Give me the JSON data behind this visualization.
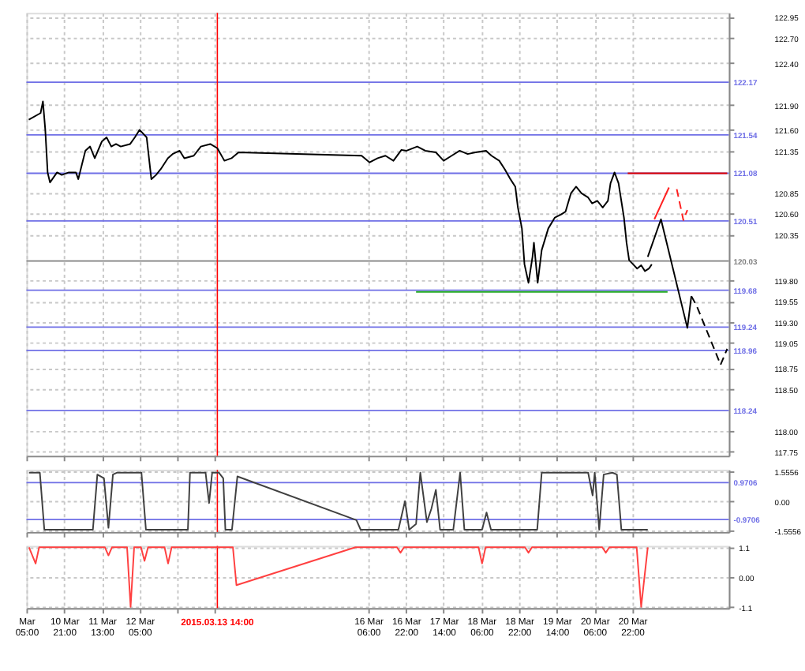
{
  "chart_data": [
    {
      "type": "line",
      "xlim": [
        "2015-03-10T05:00",
        "2015-03-22T15:00"
      ],
      "ylim": [
        117.7,
        123.0
      ],
      "grid": true,
      "legend": false,
      "tick_labels": "y",
      "xticks": [
        {
          "value": "2015-03-10T05:00",
          "label": null
        },
        {
          "value": "2015-03-10T21:00",
          "label": null
        },
        {
          "value": "2015-03-11T13:00",
          "label": null
        },
        {
          "value": "2015-03-12T05:00",
          "label": null
        },
        {
          "value": "2015-03-12T21:00",
          "label": null
        },
        {
          "value": "2015-03-13T13:00",
          "label": null
        },
        {
          "value": "2015-03-16T06:00",
          "label": null
        },
        {
          "value": "2015-03-16T22:00",
          "label": null
        },
        {
          "value": "2015-03-17T14:00",
          "label": null
        },
        {
          "value": "2015-03-18T06:00",
          "label": null
        },
        {
          "value": "2015-03-18T22:00",
          "label": null
        },
        {
          "value": "2015-03-19T14:00",
          "label": null
        },
        {
          "value": "2015-03-20T06:00",
          "label": null
        },
        {
          "value": "2015-03-20T22:00",
          "label": null
        }
      ],
      "yticks": [
        117.75,
        {
          "value": 118,
          "label": "118.00"
        },
        {
          "value": 118.5,
          "label": "118.50"
        },
        118.75,
        119.05,
        {
          "value": 119.3,
          "label": "119.30"
        },
        119.55,
        {
          "value": 119.8,
          "label": "119.80"
        },
        120.35,
        {
          "value": 120.6,
          "label": "120.60"
        },
        120.85,
        121.35,
        {
          "value": 121.6,
          "label": "121.60"
        },
        {
          "value": 121.9,
          "label": "121.90"
        },
        {
          "value": 122.4,
          "label": "122.40"
        },
        {
          "value": 122.7,
          "label": "122.70"
        },
        122.95
      ],
      "series": [
        {
          "color": "#000000",
          "line_style": "solid",
          "x": [
            "2015-03-10T06:00",
            "2015-03-10T11:00",
            "2015-03-10T12:00",
            "2015-03-10T13:00",
            "2015-03-10T14:00",
            "2015-03-10T15:00",
            "2015-03-10T16:00",
            "2015-03-10T18:00",
            "2015-03-10T20:00",
            "2015-03-10T23:00",
            "2015-03-11T02:00",
            "2015-03-11T03:00",
            "2015-03-11T06:00",
            "2015-03-11T08:00",
            "2015-03-11T10:00",
            "2015-03-11T13:00",
            "2015-03-11T15:00",
            "2015-03-11T17:00",
            "2015-03-11T19:00",
            "2015-03-11T21:00",
            "2015-03-12T01:00",
            "2015-03-12T03:00",
            "2015-03-12T05:00",
            "2015-03-12T08:00",
            "2015-03-12T09:00",
            "2015-03-12T10:00",
            "2015-03-12T12:00",
            "2015-03-12T14:00",
            "2015-03-12T17:00",
            "2015-03-12T19:00",
            "2015-03-12T22:00",
            "2015-03-13T00:00",
            "2015-03-13T04:00",
            "2015-03-13T07:00",
            "2015-03-13T11:00",
            "2015-03-13T14:00",
            "2015-03-13T17:00",
            "2015-03-13T20:00",
            "2015-03-13T23:00",
            "2015-03-16T03:12",
            "2015-03-16T06:36",
            "2015-03-16T10:00",
            "2015-03-16T13:18",
            "2015-03-16T16:42",
            "2015-03-16T20:06",
            "2015-03-16T22:18",
            "2015-03-17T02:48",
            "2015-03-17T06:12",
            "2015-03-17T10:42",
            "2015-03-17T14:00",
            "2015-03-17T17:24",
            "2015-03-17T20:48",
            "2015-03-18T00:12",
            "2015-03-18T03:30",
            "2015-03-18T08:00",
            "2015-03-18T10:18",
            "2015-03-18T13:36",
            "2015-03-18T15:54",
            "2015-03-18T18:06",
            "2015-03-18T20:24",
            "2015-03-18T21:30",
            "2015-03-18T23:12",
            "2015-03-19T00:18",
            "2015-03-19T02:00",
            "2015-03-19T03:42",
            "2015-03-19T04:18",
            "2015-03-19T05:54",
            "2015-03-19T07:36",
            "2015-03-19T10:24",
            "2015-03-19T13:12",
            "2015-03-19T16:00",
            "2015-03-19T17:42",
            "2015-03-19T20:00",
            "2015-03-19T22:12",
            "2015-03-20T00:30",
            "2015-03-20T03:18",
            "2015-03-20T05:00",
            "2015-03-20T07:12",
            "2015-03-20T09:30",
            "2015-03-20T11:42",
            "2015-03-20T12:48",
            "2015-03-20T14:30",
            "2015-03-20T16:12",
            "2015-03-20T18:30",
            "2015-03-20T19:36",
            "2015-03-20T20:42",
            "2015-03-20T22:24",
            "2015-03-21T00:06",
            "2015-03-21T01:48",
            "2015-03-21T03:24",
            "2015-03-21T05:06",
            "2015-03-21T06:18"
          ],
          "values": [
            121.72,
            121.8,
            121.94,
            121.6,
            121.09,
            120.97,
            121.01,
            121.09,
            121.06,
            121.09,
            121.09,
            121.01,
            121.35,
            121.4,
            121.26,
            121.46,
            121.51,
            121.4,
            121.43,
            121.4,
            121.43,
            121.51,
            121.6,
            121.51,
            121.26,
            121.01,
            121.06,
            121.13,
            121.26,
            121.31,
            121.35,
            121.26,
            121.29,
            121.4,
            121.43,
            121.38,
            121.23,
            121.26,
            121.33,
            121.29,
            121.21,
            121.26,
            121.29,
            121.23,
            121.36,
            121.35,
            121.4,
            121.35,
            121.33,
            121.23,
            121.29,
            121.35,
            121.31,
            121.33,
            121.35,
            121.29,
            121.23,
            121.13,
            121.02,
            120.92,
            120.67,
            120.42,
            119.99,
            119.77,
            120.08,
            120.25,
            119.77,
            120.16,
            120.42,
            120.55,
            120.59,
            120.62,
            120.84,
            120.92,
            120.84,
            120.79,
            120.72,
            120.75,
            120.67,
            120.75,
            120.96,
            121.09,
            120.96,
            120.55,
            120.25,
            120.04,
            119.99,
            119.94,
            119.98,
            119.91,
            119.94,
            119.99
          ]
        },
        {
          "color": "#000000",
          "line_style": "solid",
          "x": [
            "2015-03-21T04:36",
            "2015-03-21T10:12",
            "2015-03-21T21:24",
            "2015-03-21T23:06"
          ],
          "values": [
            120.08,
            120.53,
            119.23,
            119.61
          ]
        },
        {
          "color": "#000000",
          "line_style": "dashed",
          "x": [
            "2015-03-21T23:06",
            "2015-03-22T01:24",
            "2015-03-22T11:30",
            "2015-03-22T14:18"
          ],
          "values": [
            119.61,
            119.49,
            118.79,
            118.98
          ]
        },
        {
          "color": "#ff2020",
          "line_style": "solid",
          "x": [
            "2015-03-21T07:24",
            "2015-03-21T13:36"
          ],
          "values": [
            120.53,
            120.91
          ]
        },
        {
          "color": "#ff2020",
          "line_style": "dashed",
          "x": [
            "2015-03-21T16:54",
            "2015-03-21T19:42",
            "2015-03-21T21:24"
          ],
          "values": [
            120.89,
            120.52,
            120.64
          ]
        },
        {
          "color": "#dd0000",
          "line_style": "solid",
          "x": [
            "2015-03-20T20:06",
            "2015-03-22T14:18"
          ],
          "values": [
            121.08,
            121.08
          ]
        },
        {
          "color": "#22aa22",
          "line_style": "solid",
          "x": [
            "2015-03-17T02:18",
            "2015-03-21T13:00"
          ],
          "values": [
            119.66,
            119.66
          ]
        }
      ],
      "ref_lines": [
        {
          "axis": "y",
          "value": 122.17,
          "label": "122.17",
          "color": "#6f6fe6"
        },
        {
          "axis": "y",
          "value": 121.54,
          "label": "121.54",
          "color": "#6f6fe6"
        },
        {
          "axis": "y",
          "value": 121.08,
          "label": "121.08",
          "color": "#6f6fe6"
        },
        {
          "axis": "y",
          "value": 120.51,
          "label": "120.51",
          "color": "#6f6fe6"
        },
        {
          "axis": "y",
          "value": 120.03,
          "label": "120.03",
          "color": "#808080"
        },
        {
          "axis": "y",
          "value": 119.68,
          "label": "119.68",
          "color": "#6f6fe6"
        },
        {
          "axis": "y",
          "value": 119.24,
          "label": "119.24",
          "color": "#6f6fe6"
        },
        {
          "axis": "y",
          "value": 118.96,
          "label": "118.96",
          "color": "#6f6fe6"
        },
        {
          "axis": "y",
          "value": 118.24,
          "label": "118.24",
          "color": "#6f6fe6"
        },
        {
          "axis": "x",
          "value": "2015-03-13T14:00",
          "color": "#ff0000"
        }
      ]
    },
    {
      "type": "line",
      "xlim": [
        "2015-03-10T05:00",
        "2015-03-22T15:00"
      ],
      "ylim": [
        -1.62,
        1.65
      ],
      "grid": true,
      "legend": false,
      "tick_labels": "y",
      "xticks": [
        {
          "value": "2015-03-10T05:00",
          "label": null
        },
        {
          "value": "2015-03-10T21:00",
          "label": null
        },
        {
          "value": "2015-03-11T13:00",
          "label": null
        },
        {
          "value": "2015-03-12T05:00",
          "label": null
        },
        {
          "value": "2015-03-12T21:00",
          "label": null
        },
        {
          "value": "2015-03-13T13:00",
          "label": null
        },
        {
          "value": "2015-03-16T06:00",
          "label": null
        },
        {
          "value": "2015-03-16T22:00",
          "label": null
        },
        {
          "value": "2015-03-17T14:00",
          "label": null
        },
        {
          "value": "2015-03-18T06:00",
          "label": null
        },
        {
          "value": "2015-03-18T22:00",
          "label": null
        },
        {
          "value": "2015-03-19T14:00",
          "label": null
        },
        {
          "value": "2015-03-20T06:00",
          "label": null
        },
        {
          "value": "2015-03-20T22:00",
          "label": null
        }
      ],
      "yticks": [
        -1.5556,
        {
          "value": 0,
          "label": "0.00"
        },
        1.5556
      ],
      "series": [
        {
          "color": "#404040",
          "line_style": "solid",
          "x": [
            "2015-03-10T06:06",
            "2015-03-10T10:42",
            "2015-03-10T12:36",
            "2015-03-11T09:12",
            "2015-03-11T11:06",
            "2015-03-11T13:54",
            "2015-03-11T15:48",
            "2015-03-11T17:42",
            "2015-03-11T19:30",
            "2015-03-12T05:48",
            "2015-03-12T07:42",
            "2015-03-12T21:42",
            "2015-03-13T01:30",
            "2015-03-13T02:24",
            "2015-03-13T09:00",
            "2015-03-13T10:30",
            "2015-03-13T11:48",
            "2015-03-13T14:36",
            "2015-03-13T16:30",
            "2015-03-13T17:24",
            "2015-03-13T20:12",
            "2015-03-13T22:30",
            "2015-03-16T01:00",
            "2015-03-16T02:48",
            "2015-03-16T18:48",
            "2015-03-16T21:36",
            "2015-03-16T23:24",
            "2015-03-17T02:18",
            "2015-03-17T04:06",
            "2015-03-17T06:54",
            "2015-03-17T08:48",
            "2015-03-17T10:42",
            "2015-03-17T12:30",
            "2015-03-17T18:06",
            "2015-03-17T21:00",
            "2015-03-17T22:48",
            "2015-03-18T06:18",
            "2015-03-18T08:12",
            "2015-03-18T10:06",
            "2015-03-19T05:42",
            "2015-03-19T07:36",
            "2015-03-20T03:18",
            "2015-03-20T05:12",
            "2015-03-20T06:06",
            "2015-03-20T08:00",
            "2015-03-20T09:54",
            "2015-03-20T13:36",
            "2015-03-20T15:30",
            "2015-03-20T17:24",
            "2015-03-21T04:36"
          ],
          "values": [
            1.5,
            1.5,
            -1.5,
            -1.5,
            1.4,
            1.2,
            -1.4,
            1.4,
            1.5,
            1.5,
            -1.5,
            -1.5,
            -1.5,
            1.5,
            1.5,
            -0.1,
            1.5,
            1.5,
            1.2,
            -1.5,
            -1.5,
            1.3,
            -1.0,
            -1.5,
            -1.5,
            0.0,
            -1.5,
            -1.2,
            1.5,
            -1.1,
            -0.4,
            0.6,
            -1.5,
            -1.5,
            1.5,
            -1.5,
            -1.5,
            -0.6,
            -1.5,
            -1.5,
            1.5,
            1.5,
            0.3,
            1.5,
            -1.5,
            1.4,
            1.5,
            1.4,
            -1.5,
            -1.5
          ]
        }
      ],
      "ref_lines": [
        {
          "axis": "y",
          "value": 0.9706,
          "label": "0.9706",
          "color": "#6f6fe6"
        },
        {
          "axis": "y",
          "value": -0.9706,
          "label": "-0.9706",
          "color": "#6f6fe6"
        },
        {
          "axis": "x",
          "value": "2015-03-13T14:00",
          "color": "#ff0000"
        }
      ]
    },
    {
      "type": "line",
      "xlim": [
        "2015-03-10T05:00",
        "2015-03-22T15:00"
      ],
      "ylim": [
        -1.15,
        1.15
      ],
      "grid": true,
      "legend": false,
      "xticks": [
        {
          "value": "2015-03-10T05:00",
          "label": "Mar 05:00"
        },
        {
          "value": "2015-03-10T21:00",
          "label": "10 Mar 21:00"
        },
        {
          "value": "2015-03-11T13:00",
          "label": "11 Mar 13:00"
        },
        {
          "value": "2015-03-12T05:00",
          "label": "12 Mar 05:00"
        },
        {
          "value": "2015-03-12T21:00",
          "label": null
        },
        {
          "value": "2015-03-13T13:00",
          "label": null
        },
        {
          "value": "2015-03-16T06:00",
          "label": "16 Mar 06:00"
        },
        {
          "value": "2015-03-16T22:00",
          "label": "16 Mar 22:00"
        },
        {
          "value": "2015-03-17T14:00",
          "label": "17 Mar 14:00"
        },
        {
          "value": "2015-03-18T06:00",
          "label": "18 Mar 06:00"
        },
        {
          "value": "2015-03-18T22:00",
          "label": "18 Mar 22:00"
        },
        {
          "value": "2015-03-19T14:00",
          "label": "19 Mar 14:00"
        },
        {
          "value": "2015-03-20T06:00",
          "label": "20 Mar 06:00"
        },
        {
          "value": "2015-03-20T22:00",
          "label": "20 Mar 22:00"
        }
      ],
      "yticks": [
        -1.1,
        {
          "value": 0,
          "label": "0.00"
        },
        1.1
      ],
      "series": [
        {
          "color": "#ff4040",
          "line_style": "solid",
          "x": [
            "2015-03-10T06:06",
            "2015-03-10T08:54",
            "2015-03-10T10:24",
            "2015-03-11T14:18",
            "2015-03-11T15:48",
            "2015-03-11T17:18",
            "2015-03-11T23:42",
            "2015-03-12T01:12",
            "2015-03-12T02:42",
            "2015-03-12T05:36",
            "2015-03-12T07:06",
            "2015-03-12T08:36",
            "2015-03-12T15:36",
            "2015-03-12T17:06",
            "2015-03-12T18:36",
            "2015-03-13T20:36",
            "2015-03-13T22:06",
            "2015-03-16T00:36",
            "2015-03-16T18:12",
            "2015-03-16T19:42",
            "2015-03-16T21:12",
            "2015-03-18T04:48",
            "2015-03-18T06:18",
            "2015-03-18T07:48",
            "2015-03-19T00:30",
            "2015-03-19T02:00",
            "2015-03-19T03:30",
            "2015-03-20T09:18",
            "2015-03-20T10:48",
            "2015-03-20T12:18",
            "2015-03-20T23:54",
            "2015-03-21T01:48",
            "2015-03-21T04:36"
          ],
          "values": [
            1.1,
            0.5,
            1.1,
            1.1,
            0.8,
            1.1,
            1.1,
            -1.1,
            1.1,
            1.1,
            0.6,
            1.1,
            1.1,
            0.5,
            1.1,
            1.1,
            -0.3,
            1.1,
            1.1,
            0.9,
            1.1,
            1.1,
            0.5,
            1.1,
            1.1,
            0.9,
            1.1,
            1.1,
            0.9,
            1.1,
            1.1,
            -1.1,
            1.1
          ]
        }
      ],
      "ref_lines": [
        {
          "axis": "x",
          "value": "2015-03-13T14:00",
          "label": "2015.03.13 14:00",
          "color": "#ff0000"
        }
      ]
    }
  ]
}
